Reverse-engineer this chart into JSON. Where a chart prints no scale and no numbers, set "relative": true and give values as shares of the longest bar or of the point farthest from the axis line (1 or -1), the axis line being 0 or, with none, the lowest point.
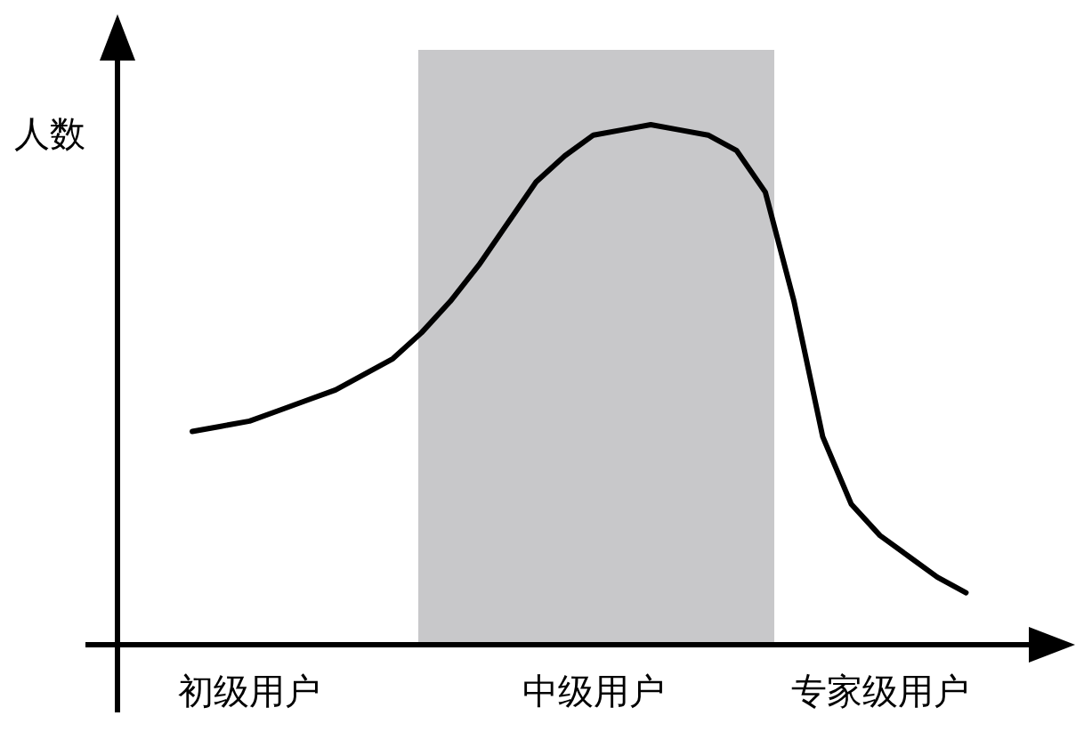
{
  "chart_data": {
    "type": "line",
    "relative": true,
    "ylabel": "人数",
    "categories": [
      null,
      null,
      "初级用户",
      null,
      null,
      null,
      null,
      null,
      null,
      null,
      null,
      null,
      null,
      null,
      "中级用户",
      null,
      null,
      null,
      null,
      null,
      null,
      null,
      null,
      null,
      "专家级用户",
      null,
      null,
      null
    ],
    "values": [
      0.41,
      0.42,
      0.43,
      0.45,
      0.47,
      0.49,
      0.52,
      0.55,
      0.6,
      0.66,
      0.73,
      0.81,
      0.89,
      0.94,
      0.98,
      0.99,
      1.0,
      0.99,
      0.98,
      0.95,
      0.87,
      0.66,
      0.4,
      0.27,
      0.21,
      0.17,
      0.13,
      0.1
    ],
    "color": "#000000"
  }
}
